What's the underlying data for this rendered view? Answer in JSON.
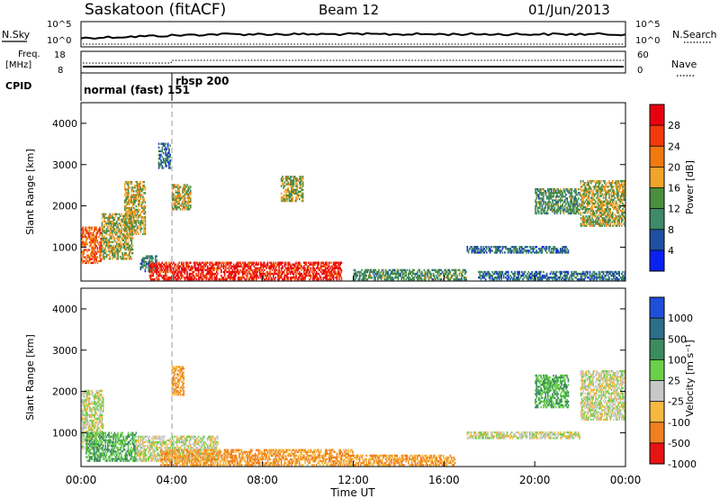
{
  "header": {
    "title": "Saskatoon (fitACF)",
    "beam": "Beam 12",
    "date": "01/Jun/2013"
  },
  "noise_panel": {
    "left_label": "N.Sky",
    "left_ticks": [
      "10^5",
      "10^0"
    ],
    "right_label": "N.Search",
    "right_ticks": [
      "10^5",
      "10^0"
    ]
  },
  "freq_panel": {
    "left_label_1": "Freq.",
    "left_label_2": "[MHz]",
    "left_ticks": [
      "18",
      "8"
    ],
    "right_label": "Nave",
    "right_ticks": [
      "60",
      "0"
    ]
  },
  "cpid_panel": {
    "label": "CPID",
    "mode1": "normal (fast) 151",
    "mode2": "rbsp 200"
  },
  "power_panel": {
    "ylabel": "Slant Range [km]",
    "colorbar_label": "Power [dB]",
    "colorbar_ticks": [
      "28",
      "24",
      "20",
      "16",
      "12",
      "8",
      "4"
    ]
  },
  "velocity_panel": {
    "ylabel": "Slant Range [km]",
    "colorbar_label": "Velocity [m s⁻¹]",
    "colorbar_ticks": [
      "1000",
      "500",
      "100",
      "25",
      "-25",
      "-100",
      "-500",
      "-1000"
    ]
  },
  "xaxis": {
    "label": "Time UT",
    "ticks": [
      "00:00",
      "04:00",
      "08:00",
      "12:00",
      "16:00",
      "20:00",
      "00:00"
    ]
  },
  "chart_data": [
    {
      "type": "heatmap",
      "title": "Saskatoon (fitACF) Beam 12 01/Jun/2013",
      "xlabel": "Time UT",
      "ylabel": "Slant Range [km]",
      "x_range_hours": [
        0,
        24
      ],
      "ylim": [
        180,
        4500
      ],
      "yticks": [
        1000,
        2000,
        3000,
        4000
      ],
      "colorbar": "Power [dB]",
      "color_levels": [
        4,
        8,
        12,
        16,
        20,
        24,
        28
      ],
      "colors": [
        "#0a22f0",
        "#1f4fa0",
        "#3f8a68",
        "#4a8e3e",
        "#f0a42a",
        "#f07a10",
        "#f23a0a",
        "#e8000e"
      ],
      "echo_regions": [
        {
          "t": [
            0.0,
            0.9
          ],
          "range": [
            600,
            1500
          ],
          "power": 24
        },
        {
          "t": [
            0.9,
            2.3
          ],
          "range": [
            700,
            1800
          ],
          "power": 16
        },
        {
          "t": [
            1.9,
            2.8
          ],
          "range": [
            1300,
            2600
          ],
          "power": 16
        },
        {
          "t": [
            2.6,
            3.3
          ],
          "range": [
            400,
            800
          ],
          "power": 8
        },
        {
          "t": [
            3.0,
            11.5
          ],
          "range": [
            200,
            650
          ],
          "power": 28
        },
        {
          "t": [
            3.4,
            3.9
          ],
          "range": [
            2900,
            3500
          ],
          "power": 8
        },
        {
          "t": [
            4.0,
            4.8
          ],
          "range": [
            1900,
            2500
          ],
          "power": 16
        },
        {
          "t": [
            8.8,
            9.8
          ],
          "range": [
            2100,
            2700
          ],
          "power": 16
        },
        {
          "t": [
            12.0,
            17.0
          ],
          "range": [
            200,
            450
          ],
          "power": 12
        },
        {
          "t": [
            17.0,
            19.2
          ],
          "range": [
            850,
            1000
          ],
          "power": 8
        },
        {
          "t": [
            19.2,
            21.5
          ],
          "range": [
            850,
            1000
          ],
          "power": 8
        },
        {
          "t": [
            20.0,
            22.0
          ],
          "range": [
            1800,
            2400
          ],
          "power": 12
        },
        {
          "t": [
            22.0,
            24.0
          ],
          "range": [
            1500,
            2600
          ],
          "power": 16
        },
        {
          "t": [
            17.5,
            24.0
          ],
          "range": [
            200,
            400
          ],
          "power": 8
        }
      ]
    },
    {
      "type": "heatmap",
      "xlabel": "Time UT",
      "ylabel": "Slant Range [km]",
      "x_range_hours": [
        0,
        24
      ],
      "ylim": [
        180,
        4500
      ],
      "yticks": [
        1000,
        2000,
        3000,
        4000
      ],
      "colorbar": "Velocity [m s-1]",
      "color_levels": [
        1000,
        500,
        100,
        25,
        -25,
        -100,
        -500,
        -1000
      ],
      "colors": [
        "#1f4fd8",
        "#2d6e8a",
        "#3c8c60",
        "#6ad04a",
        "#c8c8c8",
        "#f5b840",
        "#f08020",
        "#e81414"
      ],
      "echo_regions": [
        {
          "t": [
            0.0,
            1.0
          ],
          "range": [
            600,
            2000
          ],
          "velocity": 0
        },
        {
          "t": [
            0.2,
            2.4
          ],
          "range": [
            300,
            1000
          ],
          "velocity": 100
        },
        {
          "t": [
            2.4,
            6.0
          ],
          "range": [
            300,
            900
          ],
          "velocity": 0
        },
        {
          "t": [
            4.0,
            4.5
          ],
          "range": [
            1900,
            2600
          ],
          "velocity": -100
        },
        {
          "t": [
            3.5,
            12.0
          ],
          "range": [
            200,
            600
          ],
          "velocity": -100
        },
        {
          "t": [
            12.0,
            16.5
          ],
          "range": [
            200,
            450
          ],
          "velocity": -100
        },
        {
          "t": [
            17.0,
            22.0
          ],
          "range": [
            850,
            1000
          ],
          "velocity": 0
        },
        {
          "t": [
            20.0,
            21.5
          ],
          "range": [
            1600,
            2400
          ],
          "velocity": 100
        },
        {
          "t": [
            22.0,
            24.0
          ],
          "range": [
            1300,
            2500
          ],
          "velocity": 0
        }
      ]
    }
  ]
}
